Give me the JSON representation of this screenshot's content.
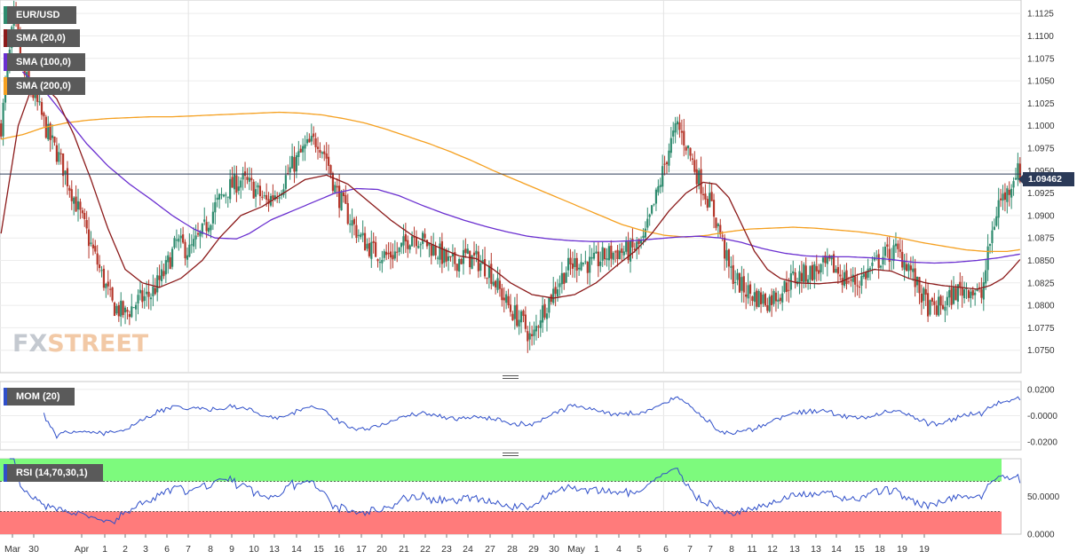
{
  "legends": {
    "pair": "EUR/USD",
    "sma20": "SMA (20,0)",
    "sma100": "SMA (100,0)",
    "sma200": "SMA (200,0)",
    "mom": "MOM (20)",
    "rsi": "RSI (14,70,30,1)"
  },
  "colors": {
    "sma20": "#8b1a1a",
    "sma100": "#6a2fd0",
    "sma200": "#f5a020",
    "up": "#2e8b6e",
    "down": "#b5372b",
    "osc": "#2f4fc9",
    "rsi_high_zone": "#7dfa7d",
    "rsi_low_zone": "#ff7b7b",
    "price_line": "#2b3a58"
  },
  "logo": {
    "part1": "FX",
    "part2": "STREET"
  },
  "last_price": "1.09462",
  "chart_data": {
    "type": "candlestick",
    "price_ylim": [
      1.0725,
      1.114
    ],
    "price_ticks": [
      "1.1125",
      "1.1100",
      "1.1075",
      "1.1050",
      "1.1025",
      "1.1000",
      "1.0975",
      "1.0950",
      "1.0925",
      "1.0900",
      "1.0875",
      "1.0850",
      "1.0825",
      "1.0800",
      "1.0775",
      "1.0750"
    ],
    "x_labels": [
      "Mar",
      "30",
      "Apr",
      "1",
      "2",
      "3",
      "6",
      "7",
      "8",
      "9",
      "10",
      "13",
      "14",
      "15",
      "16",
      "17",
      "20",
      "21",
      "22",
      "23",
      "24",
      "27",
      "28",
      "29",
      "30",
      "May",
      "1",
      "4",
      "5",
      "6",
      "7",
      "7",
      "8",
      "11",
      "12",
      "13",
      "13",
      "14",
      "15",
      "18",
      "19",
      "19"
    ],
    "price_keypoints": [
      [
        0,
        1.1
      ],
      [
        6,
        1.112
      ],
      [
        10,
        1.106
      ],
      [
        16,
        1.103
      ],
      [
        22,
        1.099
      ],
      [
        28,
        1.096
      ],
      [
        34,
        1.092
      ],
      [
        40,
        1.088
      ],
      [
        46,
        1.084
      ],
      [
        52,
        1.08
      ],
      [
        58,
        1.079
      ],
      [
        64,
        1.0805
      ],
      [
        70,
        1.0812
      ],
      [
        76,
        1.0835
      ],
      [
        82,
        1.087
      ],
      [
        88,
        1.086
      ],
      [
        94,
        1.088
      ],
      [
        100,
        1.091
      ],
      [
        106,
        1.093
      ],
      [
        112,
        1.094
      ],
      [
        118,
        1.093
      ],
      [
        124,
        1.0915
      ],
      [
        130,
        1.093
      ],
      [
        136,
        1.0955
      ],
      [
        142,
        1.0975
      ],
      [
        148,
        1.0985
      ],
      [
        152,
        1.0965
      ],
      [
        156,
        1.093
      ],
      [
        162,
        1.09
      ],
      [
        168,
        1.0875
      ],
      [
        174,
        1.086
      ],
      [
        180,
        1.0855
      ],
      [
        186,
        1.086
      ],
      [
        192,
        1.088
      ],
      [
        198,
        1.087
      ],
      [
        204,
        1.086
      ],
      [
        210,
        1.0845
      ],
      [
        216,
        1.0855
      ],
      [
        222,
        1.085
      ],
      [
        228,
        1.084
      ],
      [
        232,
        1.082
      ],
      [
        238,
        1.0795
      ],
      [
        244,
        1.078
      ],
      [
        248,
        1.076
      ],
      [
        252,
        1.079
      ],
      [
        258,
        1.0815
      ],
      [
        264,
        1.084
      ],
      [
        270,
        1.085
      ],
      [
        276,
        1.0845
      ],
      [
        282,
        1.0855
      ],
      [
        288,
        1.086
      ],
      [
        294,
        1.086
      ],
      [
        300,
        1.087
      ],
      [
        306,
        1.092
      ],
      [
        312,
        1.0975
      ],
      [
        316,
        1.1
      ],
      [
        320,
        1.098
      ],
      [
        326,
        1.094
      ],
      [
        332,
        1.091
      ],
      [
        336,
        1.088
      ],
      [
        340,
        1.084
      ],
      [
        346,
        1.082
      ],
      [
        352,
        1.081
      ],
      [
        358,
        1.0805
      ],
      [
        364,
        1.0815
      ],
      [
        370,
        1.083
      ],
      [
        376,
        1.0835
      ],
      [
        382,
        1.084
      ],
      [
        388,
        1.0845
      ],
      [
        394,
        1.083
      ],
      [
        400,
        1.0825
      ],
      [
        406,
        1.084
      ],
      [
        412,
        1.0855
      ],
      [
        418,
        1.086
      ],
      [
        424,
        1.0845
      ],
      [
        428,
        1.082
      ],
      [
        434,
        1.0795
      ],
      [
        440,
        1.08
      ],
      [
        446,
        1.0815
      ],
      [
        452,
        1.082
      ],
      [
        458,
        1.081
      ],
      [
        462,
        1.087
      ],
      [
        466,
        1.0915
      ],
      [
        470,
        1.0925
      ],
      [
        474,
        1.095
      ],
      [
        476,
        1.0946
      ]
    ],
    "sma20_keypoints": [
      [
        0,
        1.088
      ],
      [
        8,
        1.1
      ],
      [
        14,
        1.104
      ],
      [
        18,
        1.105
      ],
      [
        26,
        1.103
      ],
      [
        34,
        1.099
      ],
      [
        42,
        1.094
      ],
      [
        50,
        1.0885
      ],
      [
        58,
        1.084
      ],
      [
        66,
        1.0825
      ],
      [
        74,
        1.082
      ],
      [
        84,
        1.083
      ],
      [
        94,
        1.085
      ],
      [
        102,
        1.0875
      ],
      [
        112,
        1.09
      ],
      [
        122,
        1.091
      ],
      [
        132,
        1.0925
      ],
      [
        142,
        1.094
      ],
      [
        152,
        1.0945
      ],
      [
        162,
        1.0935
      ],
      [
        172,
        1.0915
      ],
      [
        182,
        1.0895
      ],
      [
        192,
        1.0878
      ],
      [
        204,
        1.0865
      ],
      [
        214,
        1.0855
      ],
      [
        222,
        1.0852
      ],
      [
        230,
        1.084
      ],
      [
        238,
        1.0825
      ],
      [
        248,
        1.0812
      ],
      [
        258,
        1.0808
      ],
      [
        268,
        1.0812
      ],
      [
        278,
        1.0825
      ],
      [
        288,
        1.0845
      ],
      [
        296,
        1.086
      ],
      [
        304,
        1.088
      ],
      [
        312,
        1.0905
      ],
      [
        320,
        1.0925
      ],
      [
        328,
        1.0937
      ],
      [
        334,
        1.0935
      ],
      [
        340,
        1.092
      ],
      [
        346,
        1.089
      ],
      [
        352,
        1.086
      ],
      [
        358,
        1.084
      ],
      [
        364,
        1.083
      ],
      [
        372,
        1.0825
      ],
      [
        382,
        1.0824
      ],
      [
        392,
        1.0826
      ],
      [
        400,
        1.0834
      ],
      [
        408,
        1.084
      ],
      [
        416,
        1.0838
      ],
      [
        424,
        1.083
      ],
      [
        432,
        1.0825
      ],
      [
        440,
        1.0822
      ],
      [
        448,
        1.082
      ],
      [
        456,
        1.0818
      ],
      [
        462,
        1.0822
      ],
      [
        468,
        1.083
      ],
      [
        472,
        1.084
      ],
      [
        476,
        1.0851
      ]
    ],
    "sma100_keypoints": [
      [
        10,
        1.106
      ],
      [
        20,
        1.104
      ],
      [
        30,
        1.101
      ],
      [
        40,
        1.098
      ],
      [
        50,
        1.0955
      ],
      [
        60,
        1.0935
      ],
      [
        70,
        1.0918
      ],
      [
        80,
        1.09
      ],
      [
        90,
        1.0885
      ],
      [
        100,
        1.0875
      ],
      [
        110,
        1.0874
      ],
      [
        116,
        1.088
      ],
      [
        126,
        1.0895
      ],
      [
        136,
        1.0905
      ],
      [
        146,
        1.0915
      ],
      [
        156,
        1.0925
      ],
      [
        166,
        1.093
      ],
      [
        176,
        1.0929
      ],
      [
        186,
        1.0922
      ],
      [
        196,
        1.0912
      ],
      [
        206,
        1.0903
      ],
      [
        216,
        1.0895
      ],
      [
        226,
        1.0888
      ],
      [
        236,
        1.0882
      ],
      [
        246,
        1.0877
      ],
      [
        256,
        1.0874
      ],
      [
        266,
        1.0872
      ],
      [
        276,
        1.0871
      ],
      [
        286,
        1.0871
      ],
      [
        296,
        1.0872
      ],
      [
        306,
        1.0874
      ],
      [
        316,
        1.0876
      ],
      [
        326,
        1.0877
      ],
      [
        336,
        1.0875
      ],
      [
        346,
        1.087
      ],
      [
        356,
        1.0863
      ],
      [
        366,
        1.0858
      ],
      [
        376,
        1.0855
      ],
      [
        386,
        1.0854
      ],
      [
        396,
        1.0854
      ],
      [
        406,
        1.0853
      ],
      [
        416,
        1.0851
      ],
      [
        426,
        1.0848
      ],
      [
        436,
        1.0847
      ],
      [
        446,
        1.0848
      ],
      [
        456,
        1.085
      ],
      [
        466,
        1.0853
      ],
      [
        476,
        1.0857
      ]
    ],
    "sma200_keypoints": [
      [
        0,
        1.0985
      ],
      [
        10,
        1.099
      ],
      [
        20,
        1.0998
      ],
      [
        30,
        1.1003
      ],
      [
        40,
        1.1006
      ],
      [
        50,
        1.1008
      ],
      [
        60,
        1.1009
      ],
      [
        70,
        1.101
      ],
      [
        80,
        1.101
      ],
      [
        90,
        1.1011
      ],
      [
        100,
        1.1012
      ],
      [
        110,
        1.1013
      ],
      [
        120,
        1.1014
      ],
      [
        130,
        1.1015
      ],
      [
        140,
        1.1014
      ],
      [
        150,
        1.1012
      ],
      [
        160,
        1.1008
      ],
      [
        170,
        1.1003
      ],
      [
        180,
        1.0996
      ],
      [
        190,
        1.0988
      ],
      [
        200,
        1.098
      ],
      [
        210,
        1.0971
      ],
      [
        220,
        1.0961
      ],
      [
        230,
        1.095
      ],
      [
        240,
        1.094
      ],
      [
        250,
        1.093
      ],
      [
        260,
        1.092
      ],
      [
        270,
        1.091
      ],
      [
        280,
        1.09
      ],
      [
        290,
        1.089
      ],
      [
        300,
        1.0883
      ],
      [
        310,
        1.0878
      ],
      [
        320,
        1.0876
      ],
      [
        330,
        1.0878
      ],
      [
        340,
        1.0882
      ],
      [
        350,
        1.0885
      ],
      [
        360,
        1.0886
      ],
      [
        370,
        1.0887
      ],
      [
        380,
        1.0886
      ],
      [
        390,
        1.0884
      ],
      [
        400,
        1.0882
      ],
      [
        410,
        1.0879
      ],
      [
        420,
        1.0875
      ],
      [
        430,
        1.087
      ],
      [
        440,
        1.0866
      ],
      [
        450,
        1.0862
      ],
      [
        460,
        1.086
      ],
      [
        470,
        1.086
      ],
      [
        476,
        1.0862
      ]
    ],
    "mom_ylim": [
      -0.026,
      0.026
    ],
    "mom_ticks": [
      "0.0200",
      "-0.0000",
      "-0.0200"
    ],
    "rsi_ylim": [
      0,
      100
    ],
    "rsi_ticks": [
      "50.0000",
      "0.0000"
    ],
    "rsi_zones": [
      30,
      70
    ]
  }
}
